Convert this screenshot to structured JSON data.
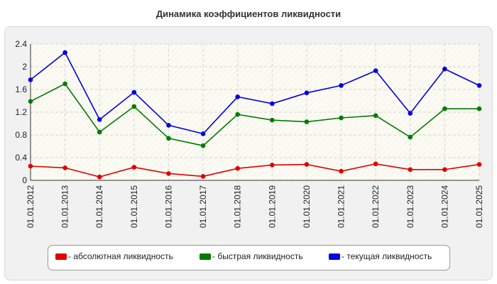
{
  "chart_data": {
    "type": "line",
    "title": "Динамика коэффициентов ликвидности",
    "xlabel": "",
    "ylabel": "",
    "categories": [
      "01.01.2012",
      "01.01.2013",
      "01.01.2014",
      "01.01.2015",
      "01.01.2016",
      "01.01.2017",
      "01.01.2018",
      "01.01.2019",
      "01.01.2020",
      "01.01.2021",
      "01.01.2022",
      "01.01.2023",
      "01.01.2024",
      "01.01.2025"
    ],
    "ylim": [
      0,
      2.4
    ],
    "yticks": [
      "0",
      "0.4",
      "0.8",
      "1.2",
      "1.6",
      "2",
      "2.4"
    ],
    "grid": true,
    "legend_position": "bottom",
    "series": [
      {
        "name": "- абсолютная ликвидность",
        "color": "#e00000",
        "values": [
          0.25,
          0.22,
          0.06,
          0.23,
          0.12,
          0.07,
          0.21,
          0.27,
          0.28,
          0.16,
          0.29,
          0.19,
          0.19,
          0.28
        ]
      },
      {
        "name": "- быстрая ликвидность",
        "color": "#007a00",
        "values": [
          1.39,
          1.7,
          0.85,
          1.3,
          0.74,
          0.61,
          1.16,
          1.06,
          1.03,
          1.1,
          1.14,
          0.76,
          1.26,
          1.26
        ]
      },
      {
        "name": "- текущая ликвидность",
        "color": "#0000e0",
        "values": [
          1.77,
          2.25,
          1.07,
          1.55,
          0.97,
          0.82,
          1.47,
          1.35,
          1.54,
          1.67,
          1.93,
          1.18,
          1.96,
          1.67
        ]
      }
    ]
  }
}
